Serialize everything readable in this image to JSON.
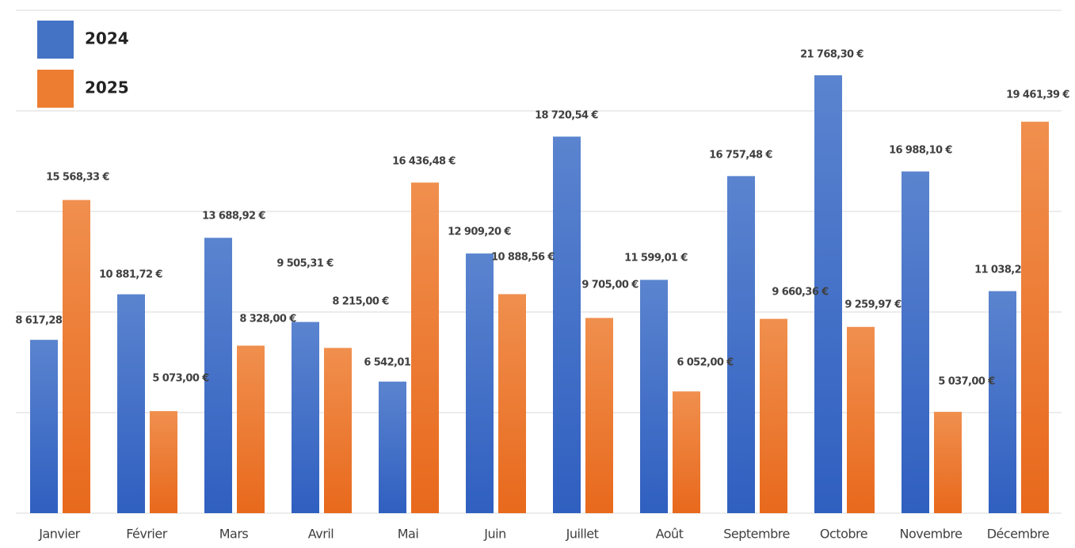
{
  "chart_data": {
    "type": "bar",
    "categories": [
      "Janvier",
      "Février",
      "Mars",
      "Avril",
      "Mai",
      "Juin",
      "Juillet",
      "Août",
      "Septembre",
      "Octobre",
      "Novembre",
      "Décembre"
    ],
    "series": [
      {
        "name": "2024",
        "color": "#4472c4",
        "values": [
          8617.28,
          10881.72,
          13688.92,
          9505.31,
          6542.01,
          12909.2,
          18720.54,
          11599.01,
          16757.48,
          21768.3,
          16988.1,
          11038.2
        ],
        "value_labels": [
          "8 617,28 €",
          "10 881,72 €",
          "13 688,92 €",
          "9 505,31 €",
          "6 542,01 €",
          "12 909,20 €",
          "18 720,54 €",
          "11 599,01 €",
          "16 757,48 €",
          "21 768,30 €",
          "16 988,10 €",
          "11 038,20 €"
        ]
      },
      {
        "name": "2025",
        "color": "#ed7d31",
        "values": [
          15568.33,
          5073.0,
          8328.0,
          8215.0,
          16436.48,
          10888.56,
          9705.0,
          6052.0,
          9660.36,
          9259.97,
          5037.0,
          19461.39
        ],
        "value_labels": [
          "15 568,33 €",
          "5 073,00 €",
          "8 328,00 €",
          "8 215,00 €",
          "16 436,48 €",
          "10 888,56 €",
          "9 705,00 €",
          "6 052,00 €",
          "9 660,36 €",
          "9 259,97 €",
          "5 037,00 €",
          "19 461,39 €"
        ]
      }
    ],
    "ylim": [
      0,
      25000
    ],
    "yticks": [
      0,
      5000,
      10000,
      15000,
      20000,
      25000
    ],
    "grid": true,
    "legend": "top-left"
  }
}
